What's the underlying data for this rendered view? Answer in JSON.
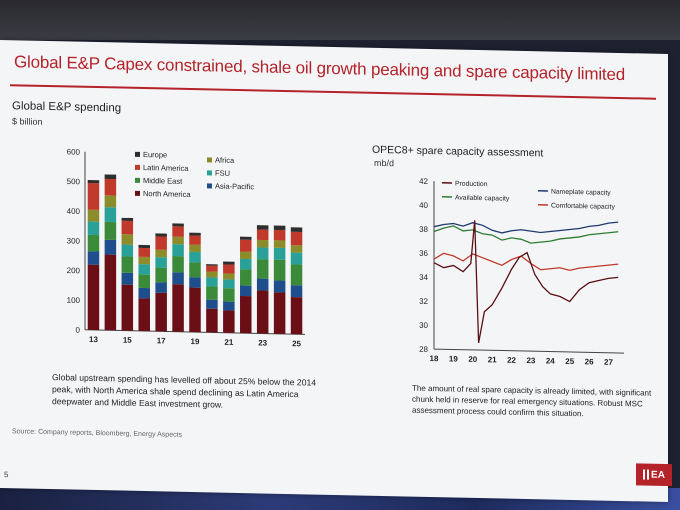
{
  "slide": {
    "title": "Global E&P Capex constrained, shale oil growth peaking and spare capacity limited",
    "source": "Source: Company reports, Bloomberg, Energy Aspects",
    "page_number": "5",
    "logo_text": "EA"
  },
  "left_panel": {
    "title": "Global E&P spending",
    "unit": "$ billion",
    "caption": "Global upstream spending has levelled off about 25% below the 2014 peak, with North America shale spend declining as Latin America deepwater and Middle East investment grow."
  },
  "right_panel": {
    "title": "OPEC8+ spare capacity assessment",
    "unit": "mb/d",
    "caption": "The amount of real spare capacity is already limited, with significant chunk held in reserve for real emergency situations. Robust MSC assessment process could confirm this situation."
  },
  "chart_data": [
    {
      "type": "bar",
      "stacked": true,
      "categories": [
        "13",
        "14",
        "15",
        "16",
        "17",
        "18",
        "19",
        "20",
        "21",
        "22",
        "23",
        "24",
        "25"
      ],
      "x_tick_labels": [
        "13",
        "15",
        "17",
        "19",
        "21",
        "23",
        "25"
      ],
      "ylim": [
        0,
        600
      ],
      "y_ticks": [
        0,
        100,
        200,
        300,
        400,
        500,
        600
      ],
      "legend": [
        "Europe",
        "Latin America",
        "Middle East",
        "North America",
        "Africa",
        "FSU",
        "Asia-Pacific"
      ],
      "series": [
        {
          "name": "North America",
          "color": "#6b0f16",
          "values": [
            220,
            255,
            155,
            110,
            130,
            160,
            150,
            80,
            75,
            125,
            145,
            140,
            125
          ]
        },
        {
          "name": "Asia-Pacific",
          "color": "#1f4e8c",
          "values": [
            45,
            50,
            40,
            35,
            35,
            40,
            35,
            30,
            30,
            35,
            40,
            40,
            40
          ]
        },
        {
          "name": "Middle East",
          "color": "#3a8a3a",
          "values": [
            55,
            60,
            55,
            45,
            50,
            55,
            50,
            45,
            45,
            55,
            65,
            70,
            70
          ]
        },
        {
          "name": "FSU",
          "color": "#2aa198",
          "values": [
            45,
            50,
            40,
            35,
            35,
            40,
            35,
            30,
            30,
            35,
            40,
            40,
            40
          ]
        },
        {
          "name": "Africa",
          "color": "#8c8c2a",
          "values": [
            40,
            40,
            35,
            25,
            25,
            25,
            25,
            20,
            20,
            25,
            25,
            25,
            25
          ]
        },
        {
          "name": "Latin America",
          "color": "#c0392b",
          "values": [
            90,
            55,
            45,
            30,
            45,
            35,
            30,
            20,
            30,
            40,
            35,
            35,
            45
          ]
        },
        {
          "name": "Europe",
          "color": "#2e2e2e",
          "values": [
            10,
            15,
            10,
            10,
            10,
            10,
            10,
            5,
            10,
            10,
            15,
            15,
            15
          ]
        }
      ]
    },
    {
      "type": "line",
      "x_tick_labels": [
        "18",
        "19",
        "20",
        "21",
        "22",
        "23",
        "24",
        "25",
        "26",
        "27"
      ],
      "xlim": [
        2018,
        2027.8
      ],
      "ylim": [
        28,
        42
      ],
      "y_ticks": [
        28,
        30,
        32,
        34,
        36,
        38,
        40,
        42
      ],
      "legend": [
        "Production",
        "Nameplate capacity",
        "Available capacity",
        "Comfortable capacity"
      ],
      "series": [
        {
          "name": "Nameplate capacity",
          "color": "#1f3a6e",
          "x": [
            2018,
            2018.5,
            2019,
            2019.5,
            2020,
            2020.5,
            2021,
            2021.5,
            2022,
            2022.5,
            2023,
            2023.5,
            2024,
            2024.5,
            2025,
            2025.5,
            2026,
            2026.5,
            2027,
            2027.5
          ],
          "y": [
            38.2,
            38.4,
            38.5,
            38.3,
            38.6,
            38.4,
            38.0,
            37.8,
            38.0,
            38.1,
            38.0,
            37.9,
            38.0,
            38.1,
            38.2,
            38.3,
            38.5,
            38.6,
            38.8,
            38.9
          ]
        },
        {
          "name": "Available capacity",
          "color": "#2e7d32",
          "x": [
            2018,
            2018.5,
            2019,
            2019.5,
            2020,
            2020.5,
            2021,
            2021.5,
            2022,
            2022.5,
            2023,
            2023.5,
            2024,
            2024.5,
            2025,
            2025.5,
            2026,
            2026.5,
            2027,
            2027.5
          ],
          "y": [
            37.8,
            38.1,
            38.3,
            37.9,
            38.0,
            37.7,
            37.6,
            37.2,
            37.4,
            37.3,
            37.0,
            37.1,
            37.2,
            37.4,
            37.5,
            37.6,
            37.8,
            37.9,
            38.0,
            38.1
          ]
        },
        {
          "name": "Comfortable capacity",
          "color": "#c0392b",
          "x": [
            2018,
            2018.5,
            2019,
            2019.5,
            2020,
            2020.5,
            2021,
            2021.5,
            2022,
            2022.5,
            2023,
            2023.5,
            2024,
            2024.5,
            2025,
            2025.5,
            2026,
            2026.5,
            2027,
            2027.5
          ],
          "y": [
            35.5,
            36.0,
            35.8,
            35.4,
            36.0,
            35.7,
            35.4,
            35.1,
            35.6,
            35.9,
            35.3,
            34.8,
            34.9,
            35.0,
            34.8,
            35.0,
            35.1,
            35.2,
            35.3,
            35.4
          ]
        },
        {
          "name": "Production",
          "color": "#5a0f14",
          "x": [
            2018,
            2018.5,
            2019,
            2019.5,
            2019.9,
            2020.1,
            2020.3,
            2020.6,
            2021,
            2021.5,
            2022,
            2022.4,
            2022.8,
            2023.2,
            2023.6,
            2024,
            2024.5,
            2025,
            2025.5,
            2026,
            2026.5,
            2027,
            2027.5
          ],
          "y": [
            35.2,
            34.8,
            35.0,
            34.5,
            35.2,
            38.8,
            28.6,
            31.2,
            31.8,
            33.2,
            34.8,
            35.8,
            36.2,
            34.4,
            33.4,
            32.8,
            32.6,
            32.2,
            33.2,
            33.8,
            34.0,
            34.2,
            34.3
          ]
        }
      ]
    }
  ]
}
